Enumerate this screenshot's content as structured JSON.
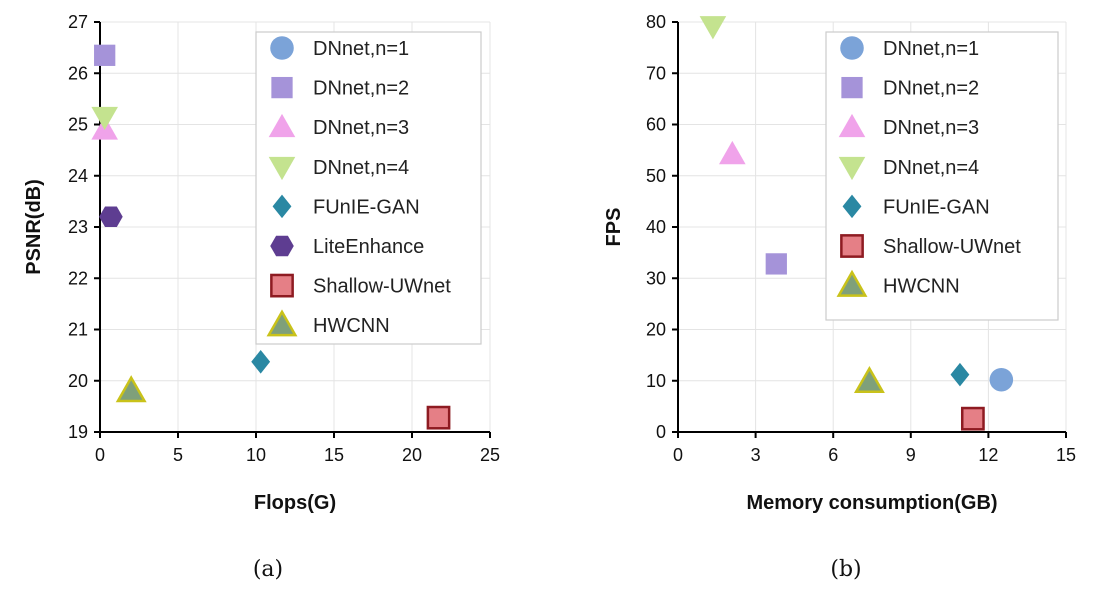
{
  "chart_data": [
    {
      "type": "scatter",
      "caption": "(a)",
      "xlabel": "Flops(G)",
      "ylabel": "PSNR(dB)",
      "xlim": [
        0,
        25
      ],
      "ylim": [
        19,
        27
      ],
      "xticks": [
        0,
        5,
        10,
        15,
        20,
        25
      ],
      "yticks": [
        19,
        20,
        21,
        22,
        23,
        24,
        25,
        26,
        27
      ],
      "grid": true,
      "legend_position": "top-right",
      "series": [
        {
          "name": "DNnet,n=1",
          "marker": "circle",
          "color": "#7ba3d8",
          "edge": "#7ba3d8",
          "points": []
        },
        {
          "name": "DNnet,n=2",
          "marker": "square",
          "color": "#a593d9",
          "edge": "#a593d9",
          "points": [
            {
              "x": 0.3,
              "y": 26.35
            }
          ]
        },
        {
          "name": "DNnet,n=3",
          "marker": "triangle-up",
          "color": "#f0a3ea",
          "edge": "#f0a3ea",
          "points": [
            {
              "x": 0.3,
              "y": 24.9
            }
          ]
        },
        {
          "name": "DNnet,n=4",
          "marker": "triangle-down",
          "color": "#c4e38f",
          "edge": "#c4e38f",
          "points": [
            {
              "x": 0.3,
              "y": 25.15
            }
          ]
        },
        {
          "name": "FUnIE-GAN",
          "marker": "diamond",
          "color": "#2a88a3",
          "edge": "#2a88a3",
          "points": [
            {
              "x": 10.3,
              "y": 20.37
            }
          ]
        },
        {
          "name": "LiteEnhance",
          "marker": "hexagon",
          "color": "#5e3d91",
          "edge": "#5e3d91",
          "points": [
            {
              "x": 0.7,
              "y": 23.2
            }
          ]
        },
        {
          "name": "Shallow-UWnet",
          "marker": "square",
          "color": "#e57f86",
          "edge": "#8e1b22",
          "points": [
            {
              "x": 21.7,
              "y": 19.28
            }
          ]
        },
        {
          "name": "HWCNN",
          "marker": "triangle-up",
          "color": "#7fa07a",
          "edge": "#c9c21a",
          "points": [
            {
              "x": 2.0,
              "y": 19.8
            }
          ]
        }
      ]
    },
    {
      "type": "scatter",
      "caption": "(b)",
      "xlabel": "Memory consumption(GB)",
      "ylabel": "FPS",
      "xlim": [
        0,
        15
      ],
      "ylim": [
        0,
        80
      ],
      "xticks": [
        0,
        3,
        6,
        9,
        12,
        15
      ],
      "yticks": [
        0,
        10,
        20,
        30,
        40,
        50,
        60,
        70,
        80
      ],
      "grid": true,
      "legend_position": "top-right",
      "series": [
        {
          "name": "DNnet,n=1",
          "marker": "circle",
          "color": "#7ba3d8",
          "edge": "#7ba3d8",
          "points": [
            {
              "x": 12.5,
              "y": 10.2
            }
          ]
        },
        {
          "name": "DNnet,n=2",
          "marker": "square",
          "color": "#a593d9",
          "edge": "#a593d9",
          "points": [
            {
              "x": 3.8,
              "y": 32.8
            }
          ]
        },
        {
          "name": "DNnet,n=3",
          "marker": "triangle-up",
          "color": "#f0a3ea",
          "edge": "#f0a3ea",
          "points": [
            {
              "x": 2.1,
              "y": 54.2
            }
          ]
        },
        {
          "name": "DNnet,n=4",
          "marker": "triangle-down",
          "color": "#c4e38f",
          "edge": "#c4e38f",
          "points": [
            {
              "x": 1.35,
              "y": 79.2
            }
          ]
        },
        {
          "name": "FUnIE-GAN",
          "marker": "diamond",
          "color": "#2a88a3",
          "edge": "#2a88a3",
          "points": [
            {
              "x": 10.9,
              "y": 11.2
            }
          ]
        },
        {
          "name": "Shallow-UWnet",
          "marker": "square",
          "color": "#e57f86",
          "edge": "#8e1b22",
          "points": [
            {
              "x": 11.4,
              "y": 2.6
            }
          ]
        },
        {
          "name": "HWCNN",
          "marker": "triangle-up",
          "color": "#7fa07a",
          "edge": "#c9c21a",
          "points": [
            {
              "x": 7.4,
              "y": 9.8
            }
          ]
        }
      ]
    }
  ]
}
